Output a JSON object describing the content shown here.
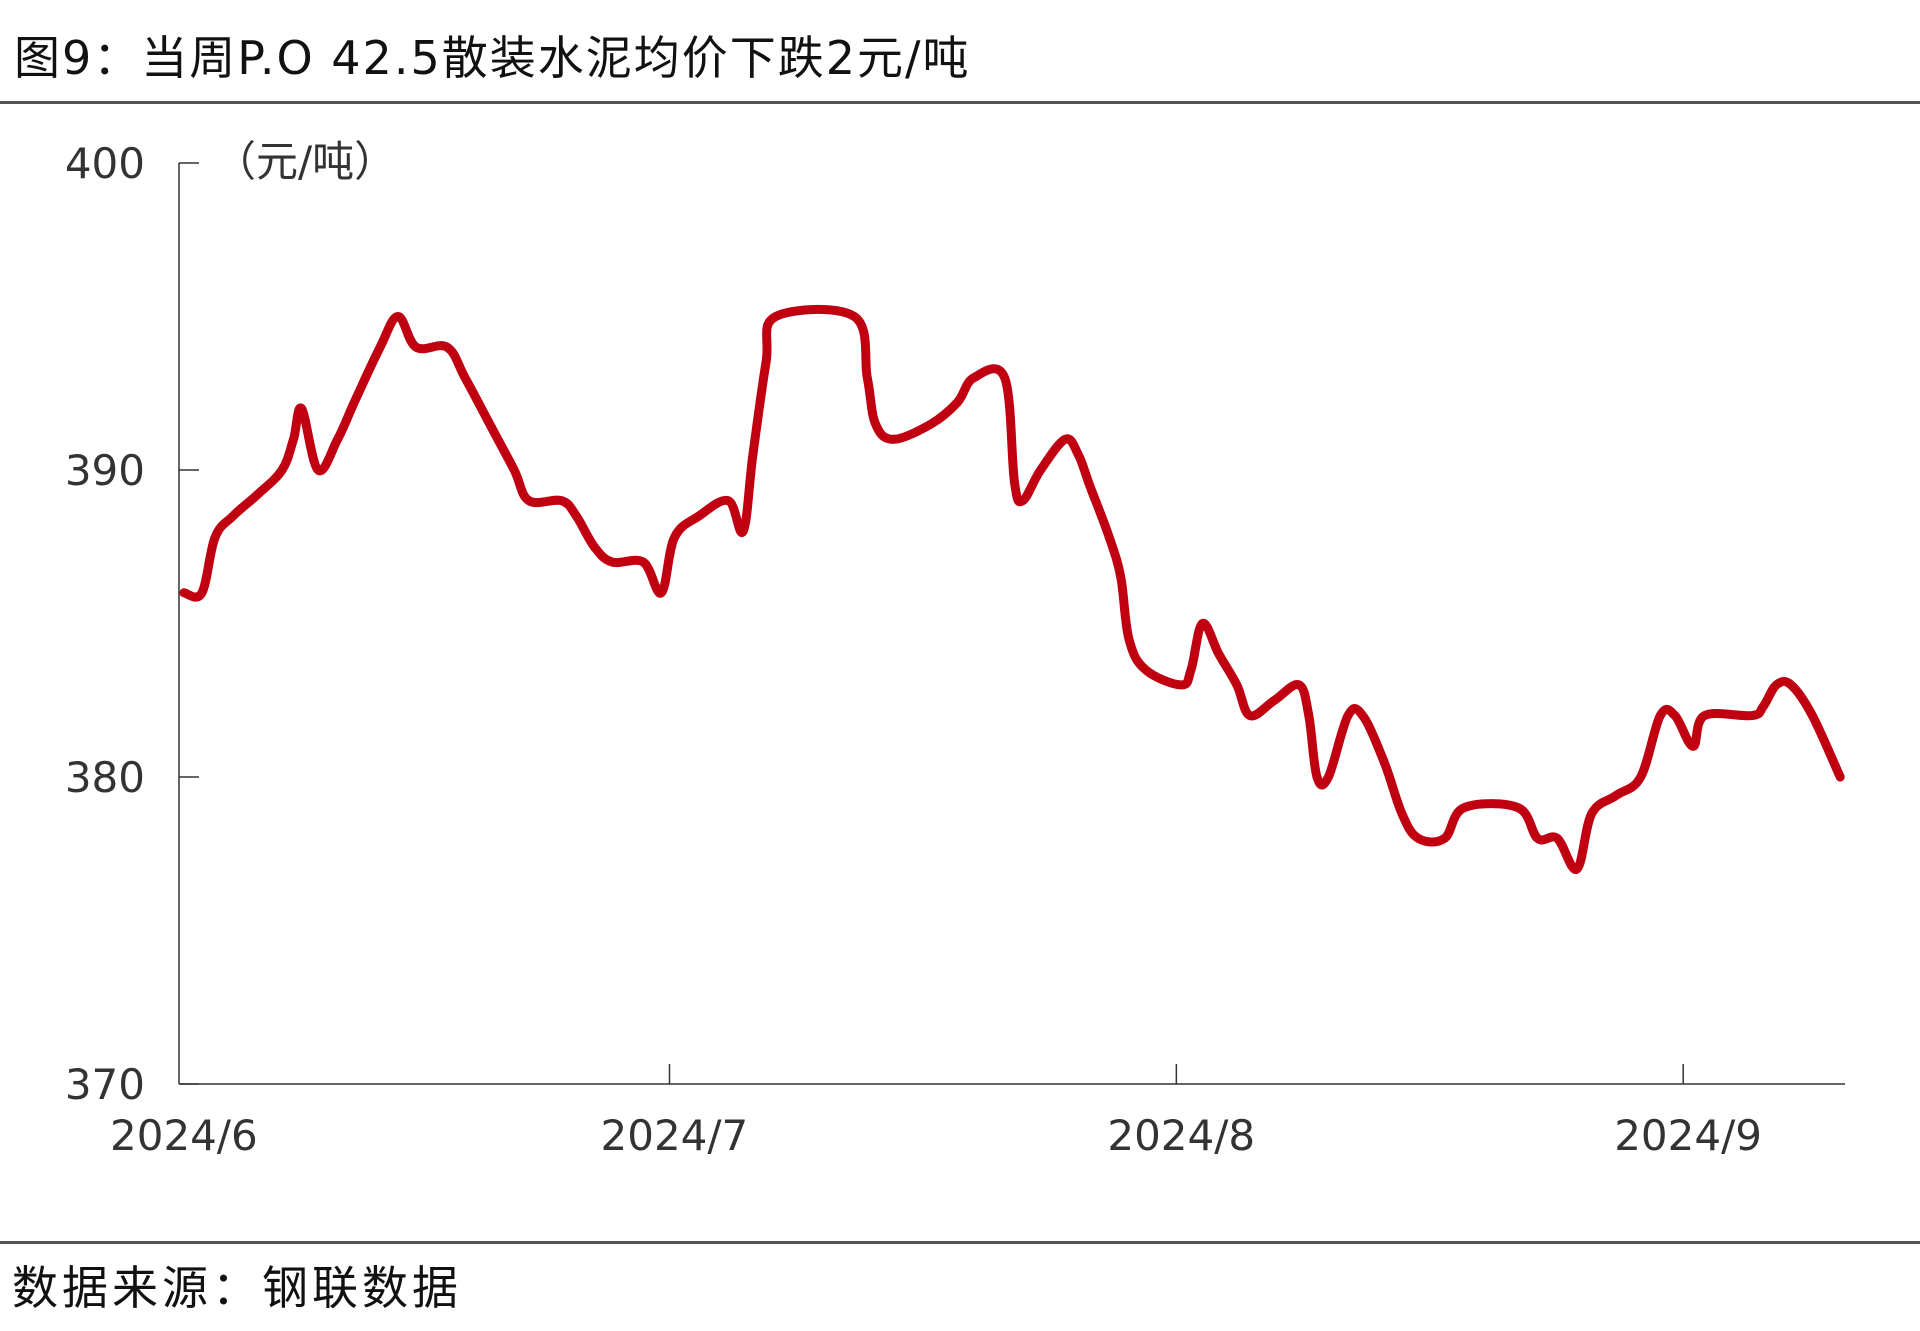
{
  "title": "图9：当周P.O 42.5散装水泥均价下跌2元/吨",
  "source": "数据来源：钢联数据",
  "colors": {
    "line": "#C00010",
    "axis": "#333333"
  },
  "chart_data": {
    "type": "line",
    "title": "图9：当周P.O 42.5散装水泥均价下跌2元/吨",
    "ylabel": "（元/吨）",
    "xlabel": "",
    "x_unit": "days since 2024-06-01",
    "xlim": [
      0,
      102
    ],
    "ylim": [
      370,
      400
    ],
    "yticks": [
      370,
      380,
      390,
      400
    ],
    "xticks": [
      {
        "label": "2024/6",
        "day": 0
      },
      {
        "label": "2024/7",
        "day": 30
      },
      {
        "label": "2024/8",
        "day": 61
      },
      {
        "label": "2024/9",
        "day": 92
      }
    ],
    "grid": false,
    "series": [
      {
        "name": "P.O 42.5散装水泥均价",
        "x": [
          0.3,
          1.4,
          2.2,
          3.3,
          4.8,
          6.3,
          7.0,
          7.5,
          8.5,
          9.7,
          10.8,
          12.3,
          13.4,
          14.5,
          16.4,
          17.5,
          19.0,
          20.5,
          21.4,
          23.4,
          24.3,
          25.4,
          26.5,
          28.4,
          29.5,
          30.3,
          31.8,
          33.6,
          34.5,
          35.1,
          35.9,
          36.5,
          41.3,
          42.1,
          42.6,
          43.7,
          46.0,
          47.6,
          48.6,
          50.5,
          51.1,
          51.6,
          52.7,
          54.2,
          55.0,
          55.7,
          56.9,
          57.6,
          58.1,
          59.1,
          61.3,
          61.9,
          62.6,
          63.6,
          64.7,
          65.5,
          67.0,
          68.5,
          69.1,
          69.6,
          70.3,
          71.5,
          72.4,
          73.7,
          74.8,
          75.8,
          77.4,
          78.6,
          81.9,
          83.1,
          84.3,
          85.5,
          86.4,
          87.9,
          89.4,
          90.6,
          91.5,
          92.6,
          93.3,
          96.2,
          96.9,
          97.7,
          98.6,
          99.9,
          101.6
        ],
        "values": [
          386,
          386,
          387.8,
          388.5,
          389.2,
          390,
          391,
          392,
          390,
          391,
          392.3,
          394,
          395,
          394,
          394,
          393,
          391.5,
          390,
          389,
          389,
          388.5,
          387.5,
          387,
          387,
          386,
          387.8,
          388.5,
          389,
          388,
          390.5,
          393.5,
          395,
          395,
          393,
          391.5,
          391,
          391.5,
          392.2,
          393,
          393,
          389.6,
          389,
          390,
          391,
          390.5,
          389.5,
          387.8,
          386.5,
          384.5,
          383.5,
          383,
          383.5,
          385,
          384,
          383,
          382,
          382.5,
          383,
          382,
          380,
          380,
          382,
          382,
          380.5,
          378.8,
          378,
          378,
          379,
          379,
          378,
          378,
          377,
          378.8,
          379.4,
          380,
          382,
          382,
          381,
          382,
          382,
          382.3,
          383,
          383,
          382,
          380
        ]
      }
    ]
  }
}
